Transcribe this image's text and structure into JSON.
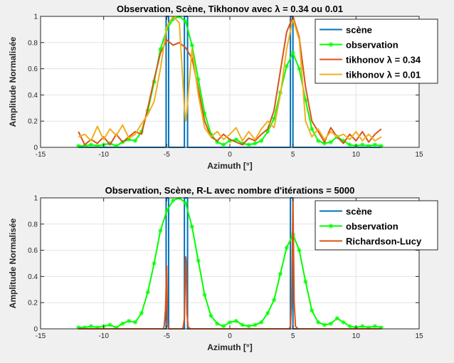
{
  "figure": {
    "background": "#f0f0f0",
    "axes_background": "#ffffff"
  },
  "chart_data": [
    {
      "type": "line",
      "title": "Observation, Scène, Tikhonov avec λ = 0.34 ou 0.01",
      "xlabel": "Azimuth [°]",
      "ylabel": "Amplitude Normalisée",
      "xlim": [
        -15,
        15
      ],
      "ylim": [
        0,
        1
      ],
      "xticks": [
        -15,
        -10,
        -5,
        0,
        5,
        10,
        15
      ],
      "xtick_labels": [
        "-15",
        "-10",
        "-5",
        "0",
        "5",
        "10",
        "15"
      ],
      "yticks": [
        0,
        0.2,
        0.4,
        0.6,
        0.8,
        1
      ],
      "ytick_labels": [
        "0",
        "0.2",
        "0.4",
        "0.6",
        "0.8",
        "1"
      ],
      "grid": true,
      "legend_position": "top-right",
      "series": [
        {
          "name": "scène",
          "color": "#0072BD",
          "marker": "none",
          "x": [
            -12,
            -5.05,
            -5.05,
            -4.85,
            -4.85,
            -3.6,
            -3.6,
            -3.35,
            -3.35,
            4.8,
            4.8,
            5.0,
            5.0,
            12
          ],
          "y": [
            0,
            0,
            1,
            1,
            0,
            0,
            1,
            1,
            0,
            0,
            1,
            1,
            0,
            0
          ]
        },
        {
          "name": "observation",
          "color": "#00FF00",
          "marker": "asterisk",
          "x": [
            -12,
            -11.5,
            -11,
            -10.5,
            -10,
            -9.5,
            -9,
            -8.5,
            -8,
            -7.5,
            -7,
            -6.5,
            -6,
            -5.5,
            -5,
            -4.5,
            -4,
            -3.5,
            -3,
            -2.5,
            -2,
            -1.5,
            -1,
            -0.5,
            0,
            0.5,
            1,
            1.5,
            2,
            2.5,
            3,
            3.5,
            4,
            4.5,
            5,
            5.5,
            6,
            6.5,
            7,
            7.5,
            8,
            8.5,
            9,
            9.5,
            10,
            10.5,
            11,
            11.5,
            12
          ],
          "y": [
            0.01,
            0.01,
            0.02,
            0.01,
            0.02,
            0.03,
            0.01,
            0.04,
            0.06,
            0.05,
            0.12,
            0.28,
            0.5,
            0.75,
            0.9,
            0.98,
            1.0,
            0.96,
            0.78,
            0.52,
            0.26,
            0.1,
            0.04,
            0.02,
            0.05,
            0.06,
            0.03,
            0.02,
            0.03,
            0.05,
            0.12,
            0.22,
            0.42,
            0.62,
            0.72,
            0.6,
            0.36,
            0.14,
            0.05,
            0.03,
            0.04,
            0.08,
            0.05,
            0.02,
            0.01,
            0.02,
            0.01,
            0.02,
            0.01
          ]
        },
        {
          "name": "tikhonov λ = 0.34",
          "color": "#D95319",
          "marker": "none",
          "x": [
            -12,
            -11.5,
            -11,
            -10.5,
            -10,
            -9.5,
            -9,
            -8.5,
            -8,
            -7.5,
            -7,
            -6.5,
            -6,
            -5.5,
            -5,
            -4.5,
            -4,
            -3.5,
            -3,
            -2.5,
            -2,
            -1.5,
            -1,
            -0.5,
            0,
            0.5,
            1,
            1.5,
            2,
            2.5,
            3,
            3.5,
            4,
            4.5,
            5,
            5.5,
            6,
            6.5,
            7,
            7.5,
            8,
            8.5,
            9,
            9.5,
            10,
            10.5,
            11,
            11.5,
            12
          ],
          "y": [
            0.12,
            0.02,
            0.06,
            0.03,
            0.08,
            0.02,
            0.1,
            0.04,
            0.08,
            0.12,
            0.1,
            0.3,
            0.52,
            0.72,
            0.82,
            0.78,
            0.8,
            0.76,
            0.68,
            0.45,
            0.2,
            0.08,
            0.05,
            0.1,
            0.06,
            0.04,
            0.02,
            0.07,
            0.05,
            0.1,
            0.14,
            0.28,
            0.58,
            0.88,
            1.0,
            0.84,
            0.46,
            0.2,
            0.12,
            0.04,
            0.15,
            0.08,
            0.03,
            0.1,
            0.05,
            0.12,
            0.04,
            0.1,
            0.14
          ]
        },
        {
          "name": "tikhonov λ = 0.01",
          "color": "#EDB120",
          "marker": "none",
          "x": [
            -12,
            -11.5,
            -11,
            -10.5,
            -10,
            -9.5,
            -9,
            -8.5,
            -8,
            -7.5,
            -7,
            -6.5,
            -6,
            -5.5,
            -5,
            -4.5,
            -4,
            -3.6,
            -3.5,
            -3.4,
            -3,
            -2.5,
            -2,
            -1.5,
            -1,
            -0.5,
            0,
            0.5,
            1,
            1.5,
            2,
            2.5,
            3,
            3.5,
            4,
            4.5,
            5,
            5.5,
            6,
            6.5,
            7,
            7.5,
            8,
            8.5,
            9,
            9.5,
            10,
            10.5,
            11,
            11.5,
            12
          ],
          "y": [
            0.08,
            0.1,
            0.05,
            0.16,
            0.06,
            0.14,
            0.09,
            0.17,
            0.07,
            0.1,
            0.18,
            0.25,
            0.35,
            0.6,
            0.92,
            1.0,
            0.95,
            0.3,
            0.2,
            0.28,
            0.75,
            0.4,
            0.15,
            0.08,
            0.12,
            0.06,
            0.1,
            0.15,
            0.05,
            0.12,
            0.06,
            0.14,
            0.2,
            0.15,
            0.4,
            0.75,
            0.98,
            0.82,
            0.2,
            0.08,
            0.14,
            0.06,
            0.12,
            0.08,
            0.1,
            0.06,
            0.12,
            0.05,
            0.1,
            0.05,
            0.08
          ]
        }
      ]
    },
    {
      "type": "line",
      "title": "Observation, Scène, R-L avec nombre d'itérations = 5000",
      "xlabel": "Azimuth [°]",
      "ylabel": "Amplitude Normalisée",
      "xlim": [
        -15,
        15
      ],
      "ylim": [
        0,
        1
      ],
      "xticks": [
        -15,
        -10,
        -5,
        0,
        5,
        10,
        15
      ],
      "xtick_labels": [
        "-15",
        "-10",
        "-5",
        "0",
        "5",
        "10",
        "15"
      ],
      "yticks": [
        0,
        0.2,
        0.4,
        0.6,
        0.8,
        1
      ],
      "ytick_labels": [
        "0",
        "0.2",
        "0.4",
        "0.6",
        "0.8",
        "1"
      ],
      "grid": true,
      "legend_position": "top-right",
      "series": [
        {
          "name": "scène",
          "color": "#0072BD",
          "marker": "none",
          "x": [
            -12,
            -5.05,
            -5.05,
            -4.85,
            -4.85,
            -3.6,
            -3.6,
            -3.35,
            -3.35,
            4.8,
            4.8,
            5.0,
            5.0,
            12
          ],
          "y": [
            0,
            0,
            1,
            1,
            0,
            0,
            1,
            1,
            0,
            0,
            1,
            1,
            0,
            0
          ]
        },
        {
          "name": "observation",
          "color": "#00FF00",
          "marker": "asterisk",
          "x": [
            -12,
            -11.5,
            -11,
            -10.5,
            -10,
            -9.5,
            -9,
            -8.5,
            -8,
            -7.5,
            -7,
            -6.5,
            -6,
            -5.5,
            -5,
            -4.5,
            -4,
            -3.5,
            -3,
            -2.5,
            -2,
            -1.5,
            -1,
            -0.5,
            0,
            0.5,
            1,
            1.5,
            2,
            2.5,
            3,
            3.5,
            4,
            4.5,
            5,
            5.5,
            6,
            6.5,
            7,
            7.5,
            8,
            8.5,
            9,
            9.5,
            10,
            10.5,
            11,
            11.5,
            12
          ],
          "y": [
            0.01,
            0.01,
            0.02,
            0.01,
            0.02,
            0.03,
            0.01,
            0.04,
            0.06,
            0.05,
            0.12,
            0.28,
            0.5,
            0.75,
            0.9,
            0.98,
            1.0,
            0.96,
            0.78,
            0.52,
            0.26,
            0.1,
            0.04,
            0.02,
            0.05,
            0.06,
            0.03,
            0.02,
            0.03,
            0.05,
            0.12,
            0.22,
            0.42,
            0.62,
            0.72,
            0.6,
            0.36,
            0.14,
            0.05,
            0.03,
            0.04,
            0.08,
            0.05,
            0.02,
            0.01,
            0.02,
            0.01,
            0.02,
            0.01
          ]
        },
        {
          "name": "Richardson-Lucy",
          "color": "#D95319",
          "marker": "none",
          "x": [
            -12,
            -6,
            -5.3,
            -5.2,
            -5.1,
            -5.0,
            -4.95,
            -4.9,
            -4.8,
            -4.6,
            -4.0,
            -3.8,
            -3.7,
            -3.6,
            -3.5,
            -3.45,
            -3.4,
            -3.3,
            -3.1,
            4.5,
            4.7,
            4.8,
            4.9,
            5.0,
            5.1,
            5.2,
            5.4,
            12
          ],
          "y": [
            0,
            0,
            0,
            0.02,
            0.15,
            0.48,
            0.1,
            0.02,
            0.0,
            0.0,
            0.0,
            0.0,
            0.01,
            0.08,
            0.55,
            0.5,
            0.12,
            0.01,
            0,
            0,
            0.0,
            0.02,
            0.2,
            0.98,
            0.2,
            0.02,
            0,
            0
          ]
        }
      ]
    }
  ]
}
